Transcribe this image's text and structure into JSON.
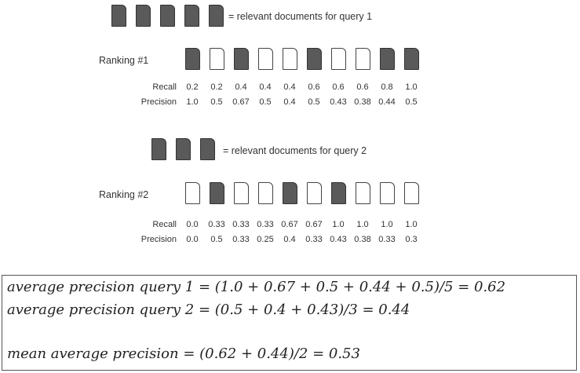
{
  "query1": {
    "relevant_count": 5,
    "legend": "= relevant documents for query 1"
  },
  "query2": {
    "relevant_count": 3,
    "legend": "= relevant documents for query 2"
  },
  "ranking1": {
    "label": "Ranking #1",
    "relevant": [
      true,
      false,
      true,
      false,
      false,
      true,
      false,
      false,
      true,
      true
    ],
    "recall_label": "Recall",
    "precision_label": "Precision",
    "recall": [
      "0.2",
      "0.2",
      "0.4",
      "0.4",
      "0.4",
      "0.6",
      "0.6",
      "0.6",
      "0.8",
      "1.0"
    ],
    "precision": [
      "1.0",
      "0.5",
      "0.67",
      "0.5",
      "0.4",
      "0.5",
      "0.43",
      "0.38",
      "0.44",
      "0.5"
    ]
  },
  "ranking2": {
    "label": "Ranking #2",
    "relevant": [
      false,
      true,
      false,
      false,
      true,
      false,
      true,
      false,
      false,
      false
    ],
    "recall_label": "Recall",
    "precision_label": "Precision",
    "recall": [
      "0.0",
      "0.33",
      "0.33",
      "0.33",
      "0.67",
      "0.67",
      "1.0",
      "1.0",
      "1.0",
      "1.0"
    ],
    "precision": [
      "0.0",
      "0.5",
      "0.33",
      "0.25",
      "0.4",
      "0.33",
      "0.43",
      "0.38",
      "0.33",
      "0.3"
    ]
  },
  "formulas": {
    "ap1": "average precision query 1 = (1.0 + 0.67 + 0.5 + 0.44 + 0.5)/5 = 0.62",
    "ap2": "average precision query 2 = (0.5 + 0.4 + 0.43)/3 = 0.44",
    "map": "mean average precision = (0.62 + 0.44)/2 = 0.53"
  },
  "colors": {
    "relevant_fill": "#5a5a5a",
    "nonrelevant_fill": "#ffffff",
    "outline": "#444444"
  }
}
